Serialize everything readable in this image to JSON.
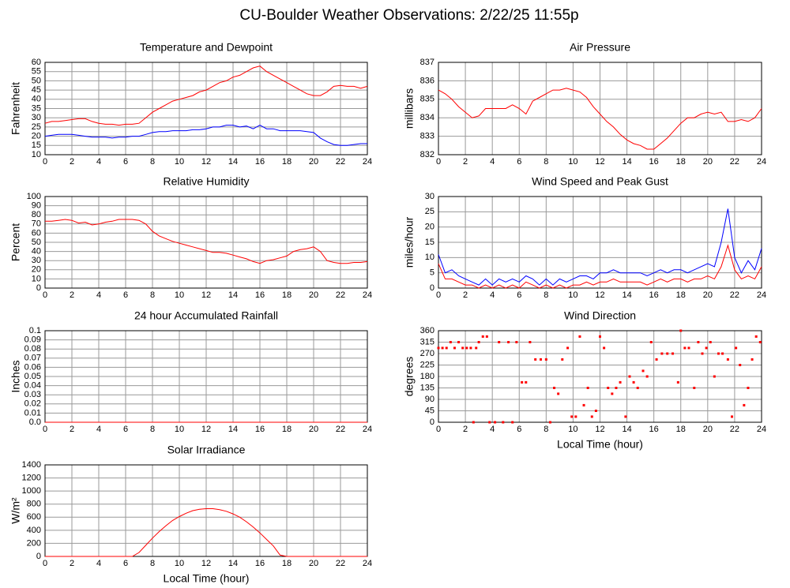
{
  "title": "CU-Boulder Weather Observations: 2/22/25 11:55p",
  "chart_data": [
    {
      "type": "line",
      "title": "Temperature and Dewpoint",
      "ylabel": "Fahrenheit",
      "x": [
        0,
        0.5,
        1,
        1.5,
        2,
        2.5,
        3,
        3.5,
        4,
        4.5,
        5,
        5.5,
        6,
        6.5,
        7,
        7.5,
        8,
        8.5,
        9,
        9.5,
        10,
        10.5,
        11,
        11.5,
        12,
        12.5,
        13,
        13.5,
        14,
        14.5,
        15,
        15.5,
        16,
        16.5,
        17,
        17.5,
        18,
        18.5,
        19,
        19.5,
        20,
        20.5,
        21,
        21.5,
        22,
        22.5,
        23,
        23.5,
        24
      ],
      "series": [
        {
          "color": "#ff0000",
          "values": [
            27,
            28,
            28,
            28.5,
            29,
            29.5,
            29.5,
            28,
            27,
            26.5,
            26.5,
            26,
            26.5,
            26.5,
            27,
            30,
            33,
            35,
            37,
            39,
            40,
            41,
            42,
            44,
            45,
            47,
            49,
            50,
            52,
            53,
            55,
            57,
            58,
            55,
            53,
            51,
            49,
            47,
            45,
            43,
            42,
            42,
            44,
            47,
            47.5,
            47,
            47,
            46,
            47
          ]
        },
        {
          "color": "#0000ff",
          "values": [
            20,
            20.5,
            21,
            21,
            21,
            20.5,
            20,
            19.5,
            19.5,
            19.5,
            19,
            19.5,
            19.5,
            20,
            20,
            21,
            22,
            22.5,
            22.5,
            23,
            23,
            23,
            23.5,
            23.5,
            24,
            25,
            25,
            26,
            26,
            25,
            25.5,
            24,
            26,
            24,
            24,
            23,
            23,
            23,
            23,
            22.5,
            22,
            19,
            17,
            15.5,
            15,
            15,
            15.5,
            16,
            16
          ]
        }
      ],
      "xlim": [
        0,
        24
      ],
      "xticks": [
        0,
        2,
        4,
        6,
        8,
        10,
        12,
        14,
        16,
        18,
        20,
        22,
        24
      ],
      "ylim": [
        10,
        60
      ],
      "yticks": [
        10,
        15,
        20,
        25,
        30,
        35,
        40,
        45,
        50,
        55,
        60
      ],
      "grid": true
    },
    {
      "type": "line",
      "title": "Air Pressure",
      "ylabel": "millibars",
      "x": [
        0,
        0.5,
        1,
        1.5,
        2,
        2.5,
        3,
        3.5,
        4,
        4.5,
        5,
        5.5,
        6,
        6.5,
        7,
        7.5,
        8,
        8.5,
        9,
        9.5,
        10,
        10.5,
        11,
        11.5,
        12,
        12.5,
        13,
        13.5,
        14,
        14.5,
        15,
        15.5,
        16,
        16.5,
        17,
        17.5,
        18,
        18.5,
        19,
        19.5,
        20,
        20.5,
        21,
        21.5,
        22,
        22.5,
        23,
        23.5,
        24
      ],
      "series": [
        {
          "color": "#ff0000",
          "values": [
            835.5,
            835.3,
            835,
            834.6,
            834.3,
            834,
            834.1,
            834.5,
            834.5,
            834.5,
            834.5,
            834.7,
            834.5,
            834.2,
            834.9,
            835.1,
            835.3,
            835.5,
            835.5,
            835.6,
            835.5,
            835.4,
            835.1,
            834.6,
            834.2,
            833.8,
            833.5,
            833.1,
            832.8,
            832.6,
            832.5,
            832.3,
            832.3,
            832.6,
            832.9,
            833.3,
            833.7,
            834,
            834,
            834.2,
            834.3,
            834.2,
            834.3,
            833.8,
            833.8,
            833.9,
            833.8,
            834,
            834.5
          ]
        }
      ],
      "xlim": [
        0,
        24
      ],
      "xticks": [
        0,
        2,
        4,
        6,
        8,
        10,
        12,
        14,
        16,
        18,
        20,
        22,
        24
      ],
      "ylim": [
        832,
        837
      ],
      "yticks": [
        832,
        833,
        834,
        835,
        836,
        837
      ],
      "grid": true
    },
    {
      "type": "line",
      "title": "Relative Humidity",
      "ylabel": "Percent",
      "x": [
        0,
        0.5,
        1,
        1.5,
        2,
        2.5,
        3,
        3.5,
        4,
        4.5,
        5,
        5.5,
        6,
        6.5,
        7,
        7.5,
        8,
        8.5,
        9,
        9.5,
        10,
        10.5,
        11,
        11.5,
        12,
        12.5,
        13,
        13.5,
        14,
        14.5,
        15,
        15.5,
        16,
        16.5,
        17,
        17.5,
        18,
        18.5,
        19,
        19.5,
        20,
        20.5,
        21,
        21.5,
        22,
        22.5,
        23,
        23.5,
        24
      ],
      "series": [
        {
          "color": "#ff0000",
          "values": [
            73,
            73,
            74,
            75,
            74,
            71,
            72,
            69,
            70,
            72,
            73,
            75,
            75,
            75,
            74,
            70,
            62,
            57,
            54,
            51,
            49,
            47,
            45,
            43,
            41,
            39,
            39,
            38,
            36,
            34,
            32,
            29,
            27,
            30,
            31,
            33,
            35,
            40,
            42,
            43,
            45,
            40,
            30,
            28,
            27,
            27,
            28,
            28,
            29
          ]
        }
      ],
      "xlim": [
        0,
        24
      ],
      "xticks": [
        0,
        2,
        4,
        6,
        8,
        10,
        12,
        14,
        16,
        18,
        20,
        22,
        24
      ],
      "ylim": [
        0,
        100
      ],
      "yticks": [
        0,
        10,
        20,
        30,
        40,
        50,
        60,
        70,
        80,
        90,
        100
      ],
      "grid": true
    },
    {
      "type": "line",
      "title": "Wind Speed and Peak Gust",
      "ylabel": "miles/hour",
      "x": [
        0,
        0.5,
        1,
        1.5,
        2,
        2.5,
        3,
        3.5,
        4,
        4.5,
        5,
        5.5,
        6,
        6.5,
        7,
        7.5,
        8,
        8.5,
        9,
        9.5,
        10,
        10.5,
        11,
        11.5,
        12,
        12.5,
        13,
        13.5,
        14,
        14.5,
        15,
        15.5,
        16,
        16.5,
        17,
        17.5,
        18,
        18.5,
        19,
        19.5,
        20,
        20.5,
        21,
        21.5,
        22,
        22.5,
        23,
        23.5,
        24
      ],
      "series": [
        {
          "color": "#0000ff",
          "values": [
            11,
            5,
            6,
            4,
            3,
            2,
            1,
            3,
            1,
            3,
            2,
            3,
            2,
            4,
            3,
            1,
            3,
            1,
            3,
            2,
            3,
            4,
            4,
            3,
            5,
            5,
            6,
            5,
            5,
            5,
            5,
            4,
            5,
            6,
            5,
            6,
            6,
            5,
            6,
            7,
            8,
            7,
            15,
            26,
            10,
            5,
            9,
            6,
            13
          ]
        },
        {
          "color": "#ff0000",
          "values": [
            8,
            3,
            3,
            2,
            1,
            1,
            0,
            1,
            0,
            1,
            0,
            1,
            0,
            2,
            1,
            0,
            1,
            0,
            1,
            0,
            1,
            1,
            2,
            1,
            2,
            2,
            3,
            2,
            2,
            2,
            2,
            1,
            2,
            3,
            2,
            3,
            3,
            2,
            3,
            3,
            4,
            3,
            7,
            14,
            6,
            3,
            4,
            3,
            7
          ]
        }
      ],
      "xlim": [
        0,
        24
      ],
      "xticks": [
        0,
        2,
        4,
        6,
        8,
        10,
        12,
        14,
        16,
        18,
        20,
        22,
        24
      ],
      "ylim": [
        0,
        30
      ],
      "yticks": [
        0,
        5,
        10,
        15,
        20,
        25,
        30
      ],
      "grid": true
    },
    {
      "type": "line",
      "title": "24 hour Accumulated Rainfall",
      "ylabel": "Inches",
      "x": [
        0,
        24
      ],
      "series": [
        {
          "color": "#ff0000",
          "values": [
            0,
            0
          ]
        }
      ],
      "xlim": [
        0,
        24
      ],
      "xticks": [
        0,
        2,
        4,
        6,
        8,
        10,
        12,
        14,
        16,
        18,
        20,
        22,
        24
      ],
      "ylim": [
        0,
        0.1
      ],
      "yticks": [
        {
          "value": 0,
          "label": "0.0"
        },
        0.01,
        0.02,
        0.03,
        0.04,
        0.05,
        0.06,
        0.07,
        0.08,
        0.09,
        0.1
      ],
      "grid": true
    },
    {
      "type": "scatter",
      "title": "Wind Direction",
      "ylabel": "degrees",
      "xlabel": "Local Time (hour)",
      "x": [
        0,
        0.3,
        0.6,
        0.9,
        1.2,
        1.5,
        1.8,
        2.1,
        2.4,
        2.6,
        2.8,
        3,
        3.3,
        3.6,
        3.8,
        4.2,
        4.5,
        4.8,
        5.2,
        5.5,
        5.8,
        6.2,
        6.5,
        6.8,
        7.2,
        7.6,
        8,
        8.3,
        8.6,
        8.9,
        9.2,
        9.6,
        9.9,
        10.2,
        10.5,
        10.8,
        11.1,
        11.4,
        11.7,
        12,
        12.3,
        12.6,
        12.9,
        13.2,
        13.5,
        13.9,
        14.2,
        14.5,
        14.8,
        15.2,
        15.5,
        15.8,
        16.2,
        16.6,
        17,
        17.4,
        17.8,
        18,
        18.3,
        18.6,
        19,
        19.3,
        19.6,
        19.9,
        20.2,
        20.5,
        20.8,
        21.1,
        21.5,
        21.8,
        22.1,
        22.4,
        22.7,
        23,
        23.3,
        23.6,
        23.9
      ],
      "series": [
        {
          "color": "#ff0000",
          "values": [
            292,
            292,
            292,
            315,
            292,
            315,
            292,
            292,
            292,
            0,
            292,
            315,
            337,
            337,
            0,
            0,
            315,
            0,
            315,
            0,
            315,
            157,
            157,
            315,
            247,
            247,
            247,
            0,
            135,
            112,
            247,
            292,
            22,
            22,
            337,
            67,
            135,
            22,
            45,
            337,
            292,
            135,
            112,
            135,
            157,
            22,
            180,
            157,
            135,
            202,
            180,
            315,
            247,
            270,
            270,
            270,
            157,
            360,
            292,
            292,
            135,
            315,
            270,
            292,
            315,
            180,
            270,
            270,
            247,
            22,
            292,
            225,
            67,
            135,
            247,
            337,
            315
          ]
        }
      ],
      "xlim": [
        0,
        24
      ],
      "xticks": [
        0,
        2,
        4,
        6,
        8,
        10,
        12,
        14,
        16,
        18,
        20,
        22,
        24
      ],
      "ylim": [
        0,
        360
      ],
      "yticks": [
        0,
        45,
        90,
        135,
        180,
        225,
        270,
        315,
        360
      ],
      "grid": true
    },
    {
      "type": "line",
      "title": "Solar Irradiance",
      "ylabel": "W/m²",
      "xlabel": "Local Time (hour)",
      "x": [
        0,
        0.5,
        1,
        1.5,
        2,
        2.5,
        3,
        3.5,
        4,
        4.5,
        5,
        5.5,
        6,
        6.5,
        7,
        7.5,
        8,
        8.5,
        9,
        9.5,
        10,
        10.5,
        11,
        11.5,
        12,
        12.5,
        13,
        13.5,
        14,
        14.5,
        15,
        15.5,
        16,
        16.5,
        17,
        17.5,
        18,
        18.5,
        19,
        19.5,
        20,
        20.5,
        21,
        21.5,
        22,
        22.5,
        23,
        23.5,
        24
      ],
      "series": [
        {
          "color": "#ff0000",
          "values": [
            0,
            0,
            0,
            0,
            0,
            0,
            0,
            0,
            0,
            0,
            0,
            0,
            0,
            0,
            60,
            170,
            280,
            380,
            470,
            550,
            610,
            660,
            700,
            720,
            730,
            730,
            715,
            690,
            650,
            600,
            530,
            450,
            360,
            260,
            160,
            20,
            0,
            0,
            0,
            0,
            0,
            0,
            0,
            0,
            0,
            0,
            0,
            0,
            0
          ]
        }
      ],
      "xlim": [
        0,
        24
      ],
      "xticks": [
        0,
        2,
        4,
        6,
        8,
        10,
        12,
        14,
        16,
        18,
        20,
        22,
        24
      ],
      "ylim": [
        0,
        1400
      ],
      "yticks": [
        0,
        200,
        400,
        600,
        800,
        1000,
        1200,
        1400
      ],
      "grid": true
    }
  ]
}
